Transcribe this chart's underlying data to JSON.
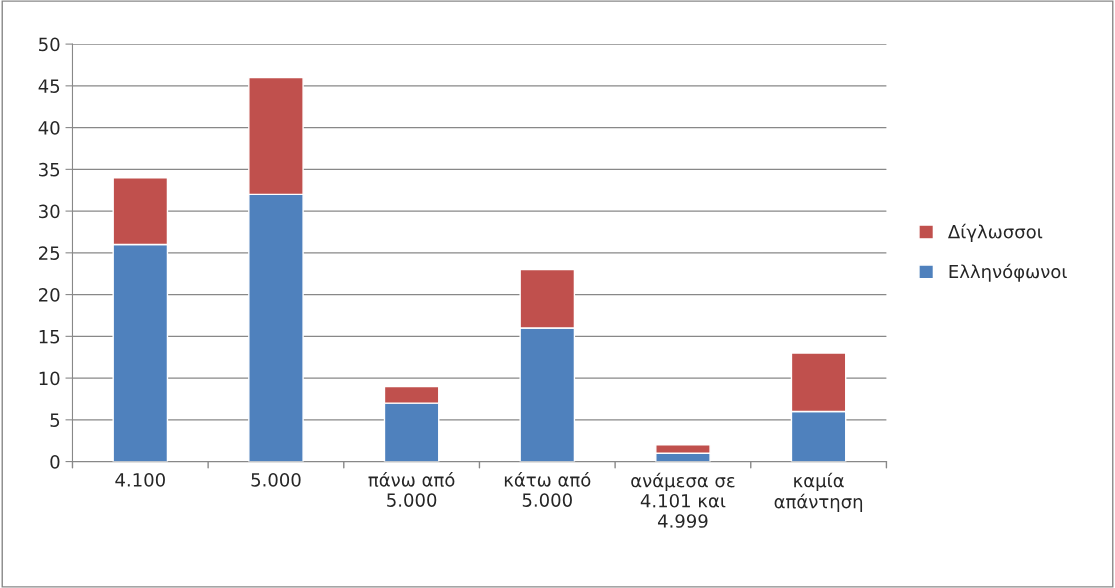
{
  "chart_data": {
    "type": "bar",
    "stacked": true,
    "categories": [
      "4.100",
      "5.000",
      "πάνω από\n5.000",
      "κάτω από\n5.000",
      "ανάμεσα σε\n4.101 και\n4.999",
      "καμία\nαπάντηση"
    ],
    "series": [
      {
        "name": "Ελληνόφωνοι",
        "color": "#4f81bd",
        "values": [
          26,
          32,
          7,
          16,
          1,
          6
        ]
      },
      {
        "name": "Δίγλωσσοι",
        "color": "#c0504d",
        "values": [
          8,
          14,
          2,
          7,
          1,
          7
        ]
      }
    ],
    "ylim": [
      0,
      50
    ],
    "yticks": [
      0,
      5,
      10,
      15,
      20,
      25,
      30,
      35,
      40,
      45,
      50
    ],
    "grid": "y",
    "legend": "right"
  }
}
